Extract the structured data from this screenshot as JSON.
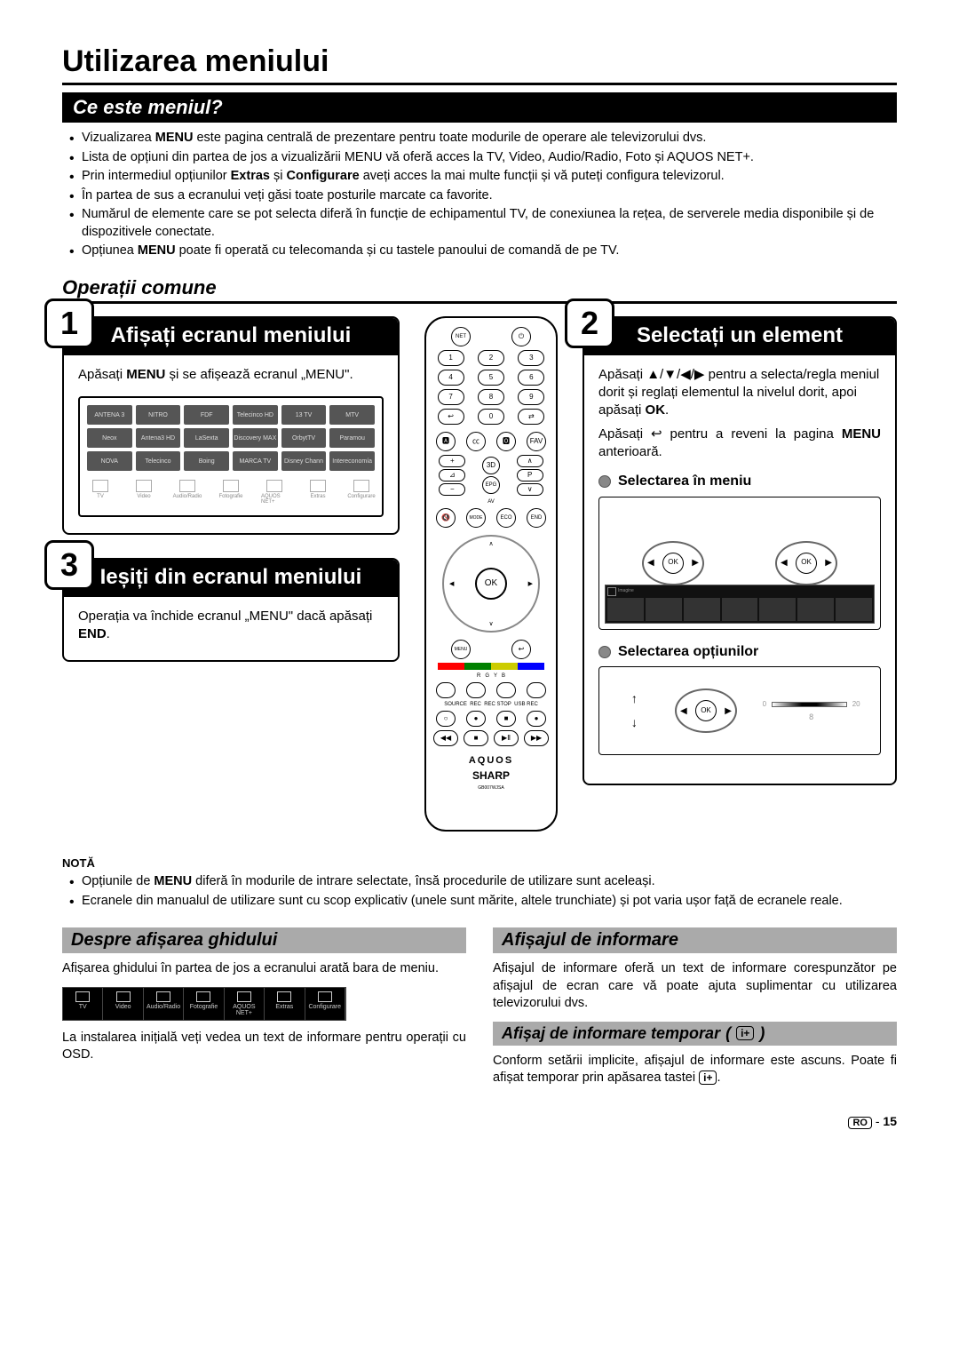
{
  "doc": {
    "main_title": "Utilizarea meniului",
    "section1_title": "Ce este meniul?",
    "bullets1": [
      "Vizualizarea <b>MENU</b> este pagina centrală de prezentare pentru toate modurile de operare ale televizorului dvs.",
      "Lista de opțiuni din partea de jos a vizualizării MENU vă oferă acces la TV, Video, Audio/Radio, Foto și AQUOS NET+.",
      "Prin intermediul opțiunilor <b>Extras</b> și <b>Configurare</b> aveți acces la mai multe funcții și vă puteți configura televizorul.",
      "În partea de sus a ecranului veți găsi toate posturile marcate ca favorite.",
      "Numărul de elemente care se pot selecta diferă în funcție de echipamentul TV, de conexiunea la rețea, de serverele media disponibile și de dispozitivele conectate.",
      "Opțiunea <b>MENU</b> poate fi operată cu telecomanda și cu tastele panoului de comandă de pe TV."
    ],
    "section2_title": "Operații comune",
    "step1_title": "Afișați ecranul meniului",
    "step1_body": "Apăsați <b>MENU</b> și se afișează ecranul „MENU\".",
    "step2_title": "Selectați un element",
    "step2_body1": "Apăsați ▲/▼/◀/▶ pentru a selecta/regla meniul dorit și reglați elementul la nivelul dorit, apoi apăsați <b>OK</b>.",
    "step2_body2": "Apăsați ↩ pentru a reveni la pagina <b>MENU</b> anterioară.",
    "sub_sel_menu": "Selectarea în meniu",
    "sub_sel_opt": "Selectarea opțiunilor",
    "step3_title": "Ieșiți din ecranul meniului",
    "step3_body": "Operația va închide ecranul „MENU\" dacă apăsați <b>END</b>.",
    "note_title": "NOTĂ",
    "note_bullets": [
      "Opțiunile de <b>MENU</b> diferă în modurile de intrare selectate, însă procedurile de utilizare sunt aceleași.",
      "Ecranele din manualul de utilizare sunt cu scop explicativ (unele sunt mărite, altele trunchiate) și pot varia ușor față de ecranele reale."
    ],
    "guide_title": "Despre afișarea ghidului",
    "guide_p1": "Afișarea ghidului în partea de jos a ecranului arată bara de meniu.",
    "guide_p2": "La instalarea inițială veți vedea un text de informare pentru operații cu OSD.",
    "info_title": "Afișajul de informare",
    "info_p1": "Afișajul de informare oferă un text de informare corespunzător pe afișajul de ecran care vă poate ajuta suplimentar cu utilizarea televizorului dvs.",
    "temp_title": "Afișaj de informare temporar",
    "temp_p1": "Conform setării implicite, afișajul de informare este ascuns. Poate fi afișat temporar prin apăsarea tastei",
    "page_label": "RO",
    "page_num": "15",
    "iplus": "i+",
    "shot_channels": [
      "ANTENA 3",
      "NITRO",
      "FDF",
      "Telecinco HD",
      "13 TV",
      "MTV",
      "Neox",
      "Antena3 HD",
      "LaSexta",
      "Discovery MAX",
      "OrbytTV",
      "Paramou",
      "NOVA",
      "Telecinco",
      "Boing",
      "MARCA TV",
      "Disney Chann",
      "Intereconomía"
    ],
    "shot_icons": [
      "TV",
      "Video",
      "Audio/Radio",
      "Fotografie",
      "AQUOS NET+",
      "Extras",
      "Configurare"
    ],
    "icon_bar": [
      "TV",
      "Video",
      "Audio/Radio",
      "Fotografie",
      "AQUOS NET+",
      "Extras",
      "Configurare"
    ],
    "remote": {
      "ok": "OK",
      "net": "NET",
      "aquos": "AQUOS",
      "sharp": "SHARP",
      "menu": "MENU",
      "epg": "EPG"
    },
    "colors": {
      "bg": "#ffffff",
      "fg": "#000000",
      "grey": "#aaaaaa"
    }
  }
}
